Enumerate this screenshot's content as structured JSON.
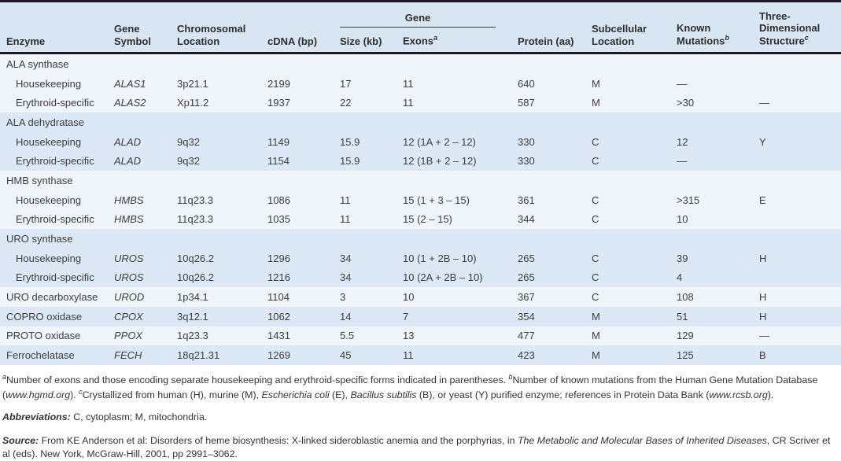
{
  "colors": {
    "rule_dark": "#1b1b25",
    "header_bg": "#d8e5f2",
    "stripe_blue": "#dce8f5",
    "stripe_light": "#eff5fb",
    "text": "#3d3d3d"
  },
  "table": {
    "gene_group_label": "Gene",
    "columns": [
      {
        "key": "enzyme",
        "label": "Enzyme",
        "sup": ""
      },
      {
        "key": "gene_symbol",
        "label": "Gene Symbol",
        "sup": ""
      },
      {
        "key": "chrom",
        "label": "Chromosomal Location",
        "sup": ""
      },
      {
        "key": "cdna",
        "label": "cDNA (bp)",
        "sup": ""
      },
      {
        "key": "size",
        "label": "Size (kb)",
        "sup": ""
      },
      {
        "key": "exons",
        "label": "Exons",
        "sup": "a"
      },
      {
        "key": "protein",
        "label": "Protein (aa)",
        "sup": ""
      },
      {
        "key": "subcell",
        "label": "Subcellular Location",
        "sup": ""
      },
      {
        "key": "mutations",
        "label": "Known Mutations",
        "sup": "b"
      },
      {
        "key": "structure",
        "label": "Three-Dimensional Structure",
        "sup": "c"
      }
    ],
    "rows": [
      {
        "type": "group",
        "shade": "light",
        "enzyme": "ALA synthase"
      },
      {
        "type": "data",
        "shade": "light",
        "indent": true,
        "enzyme": "Housekeeping",
        "gene_symbol": "ALAS1",
        "chrom": "3p21.1",
        "cdna": "2199",
        "size": "17",
        "exons": "11",
        "protein": "640",
        "subcell": "M",
        "mutations": "—",
        "structure": ""
      },
      {
        "type": "data",
        "shade": "light",
        "indent": true,
        "enzyme": "Erythroid-specific",
        "gene_symbol": "ALAS2",
        "chrom": "Xp11.2",
        "cdna": "1937",
        "size": "22",
        "exons": "11",
        "protein": "587",
        "subcell": "M",
        "mutations": ">30",
        "structure": "—"
      },
      {
        "type": "group",
        "shade": "blue",
        "enzyme": "ALA dehydratase"
      },
      {
        "type": "data",
        "shade": "blue",
        "indent": true,
        "enzyme": "Housekeeping",
        "gene_symbol": "ALAD",
        "chrom": "9q32",
        "cdna": "1149",
        "size": "15.9",
        "exons": "12 (1A + 2 – 12)",
        "protein": "330",
        "subcell": "C",
        "mutations": "12",
        "structure": "Y"
      },
      {
        "type": "data",
        "shade": "blue",
        "indent": true,
        "enzyme": "Erythroid-specific",
        "gene_symbol": "ALAD",
        "chrom": "9q32",
        "cdna": "1154",
        "size": "15.9",
        "exons": "12 (1B + 2 – 12)",
        "protein": "330",
        "subcell": "C",
        "mutations": "—",
        "structure": ""
      },
      {
        "type": "group",
        "shade": "light",
        "enzyme": "HMB synthase"
      },
      {
        "type": "data",
        "shade": "light",
        "indent": true,
        "enzyme": "Housekeeping",
        "gene_symbol": "HMBS",
        "chrom": "11q23.3",
        "cdna": "1086",
        "size": "11",
        "exons": "15 (1 + 3 – 15)",
        "protein": "361",
        "subcell": "C",
        "mutations": ">315",
        "structure": "E"
      },
      {
        "type": "data",
        "shade": "light",
        "indent": true,
        "enzyme": "Erythroid-specific",
        "gene_symbol": "HMBS",
        "chrom": "11q23.3",
        "cdna": "1035",
        "size": "11",
        "exons": "15 (2 – 15)",
        "protein": "344",
        "subcell": "C",
        "mutations": "10",
        "structure": ""
      },
      {
        "type": "group",
        "shade": "blue",
        "enzyme": "URO synthase"
      },
      {
        "type": "data",
        "shade": "blue",
        "indent": true,
        "enzyme": "Housekeeping",
        "gene_symbol": "UROS",
        "chrom": "10q26.2",
        "cdna": "1296",
        "size": "34",
        "exons": "10 (1 + 2B – 10)",
        "protein": "265",
        "subcell": "C",
        "mutations": "39",
        "structure": "H"
      },
      {
        "type": "data",
        "shade": "blue",
        "indent": true,
        "enzyme": "Erythroid-specific",
        "gene_symbol": "UROS",
        "chrom": "10q26.2",
        "cdna": "1216",
        "size": "34",
        "exons": "10 (2A + 2B – 10)",
        "protein": "265",
        "subcell": "C",
        "mutations": "4",
        "structure": ""
      },
      {
        "type": "data",
        "shade": "light",
        "indent": false,
        "enzyme": "URO decarboxylase",
        "gene_symbol": "UROD",
        "chrom": "1p34.1",
        "cdna": "1104",
        "size": "3",
        "exons": "10",
        "protein": "367",
        "subcell": "C",
        "mutations": "108",
        "structure": "H"
      },
      {
        "type": "data",
        "shade": "blue",
        "indent": false,
        "enzyme": "COPRO oxidase",
        "gene_symbol": "CPOX",
        "chrom": "3q12.1",
        "cdna": "1062",
        "size": "14",
        "exons": "7",
        "protein": "354",
        "subcell": "M",
        "mutations": "51",
        "structure": "H"
      },
      {
        "type": "data",
        "shade": "light",
        "indent": false,
        "enzyme": "PROTO oxidase",
        "gene_symbol": "PPOX",
        "chrom": "1q23.3",
        "cdna": "1431",
        "size": "5.5",
        "exons": "13",
        "protein": "477",
        "subcell": "M",
        "mutations": "129",
        "structure": "—"
      },
      {
        "type": "data",
        "shade": "blue",
        "indent": false,
        "enzyme": "Ferrochelatase",
        "gene_symbol": "FECH",
        "chrom": "18q21.31",
        "cdna": "1269",
        "size": "45",
        "exons": "11",
        "protein": "423",
        "subcell": "M",
        "mutations": "125",
        "structure": "B"
      }
    ]
  },
  "footnotes": {
    "main": [
      {
        "t": "a",
        "sup": true
      },
      {
        "t": "Number of exons and those encoding separate housekeeping and erythroid-specific forms indicated in parentheses.  "
      },
      {
        "t": "b",
        "sup": true
      },
      {
        "t": "Number of known mutations from the Human Gene Mutation Database ("
      },
      {
        "t": "www.hgmd.org",
        "i": true
      },
      {
        "t": ").  "
      },
      {
        "t": "c",
        "sup": true
      },
      {
        "t": "Crystallized from human (H), murine (M), "
      },
      {
        "t": "Escherichia coli",
        "i": true
      },
      {
        "t": " (E), "
      },
      {
        "t": "Bacillus subtilis",
        "i": true
      },
      {
        "t": " (B), or yeast (Y) purified enzyme; references in Protein Data Bank ("
      },
      {
        "t": "www.rcsb.org",
        "i": true
      },
      {
        "t": ")."
      }
    ],
    "abbreviations": [
      {
        "t": "Abbreviations:",
        "b": true,
        "i": true
      },
      {
        "t": " C, cytoplasm; M, mitochondria."
      }
    ],
    "source": [
      {
        "t": "Source:",
        "b": true,
        "i": true
      },
      {
        "t": " From KE Anderson et al: Disorders of heme biosynthesis: X-linked sideroblastic anemia and the porphyrias, in "
      },
      {
        "t": "The Metabolic and Molecular Bases of Inherited Diseases",
        "i": true
      },
      {
        "t": ", CR Scriver et al (eds). New York, McGraw-Hill, 2001, pp 2991–3062."
      }
    ]
  }
}
